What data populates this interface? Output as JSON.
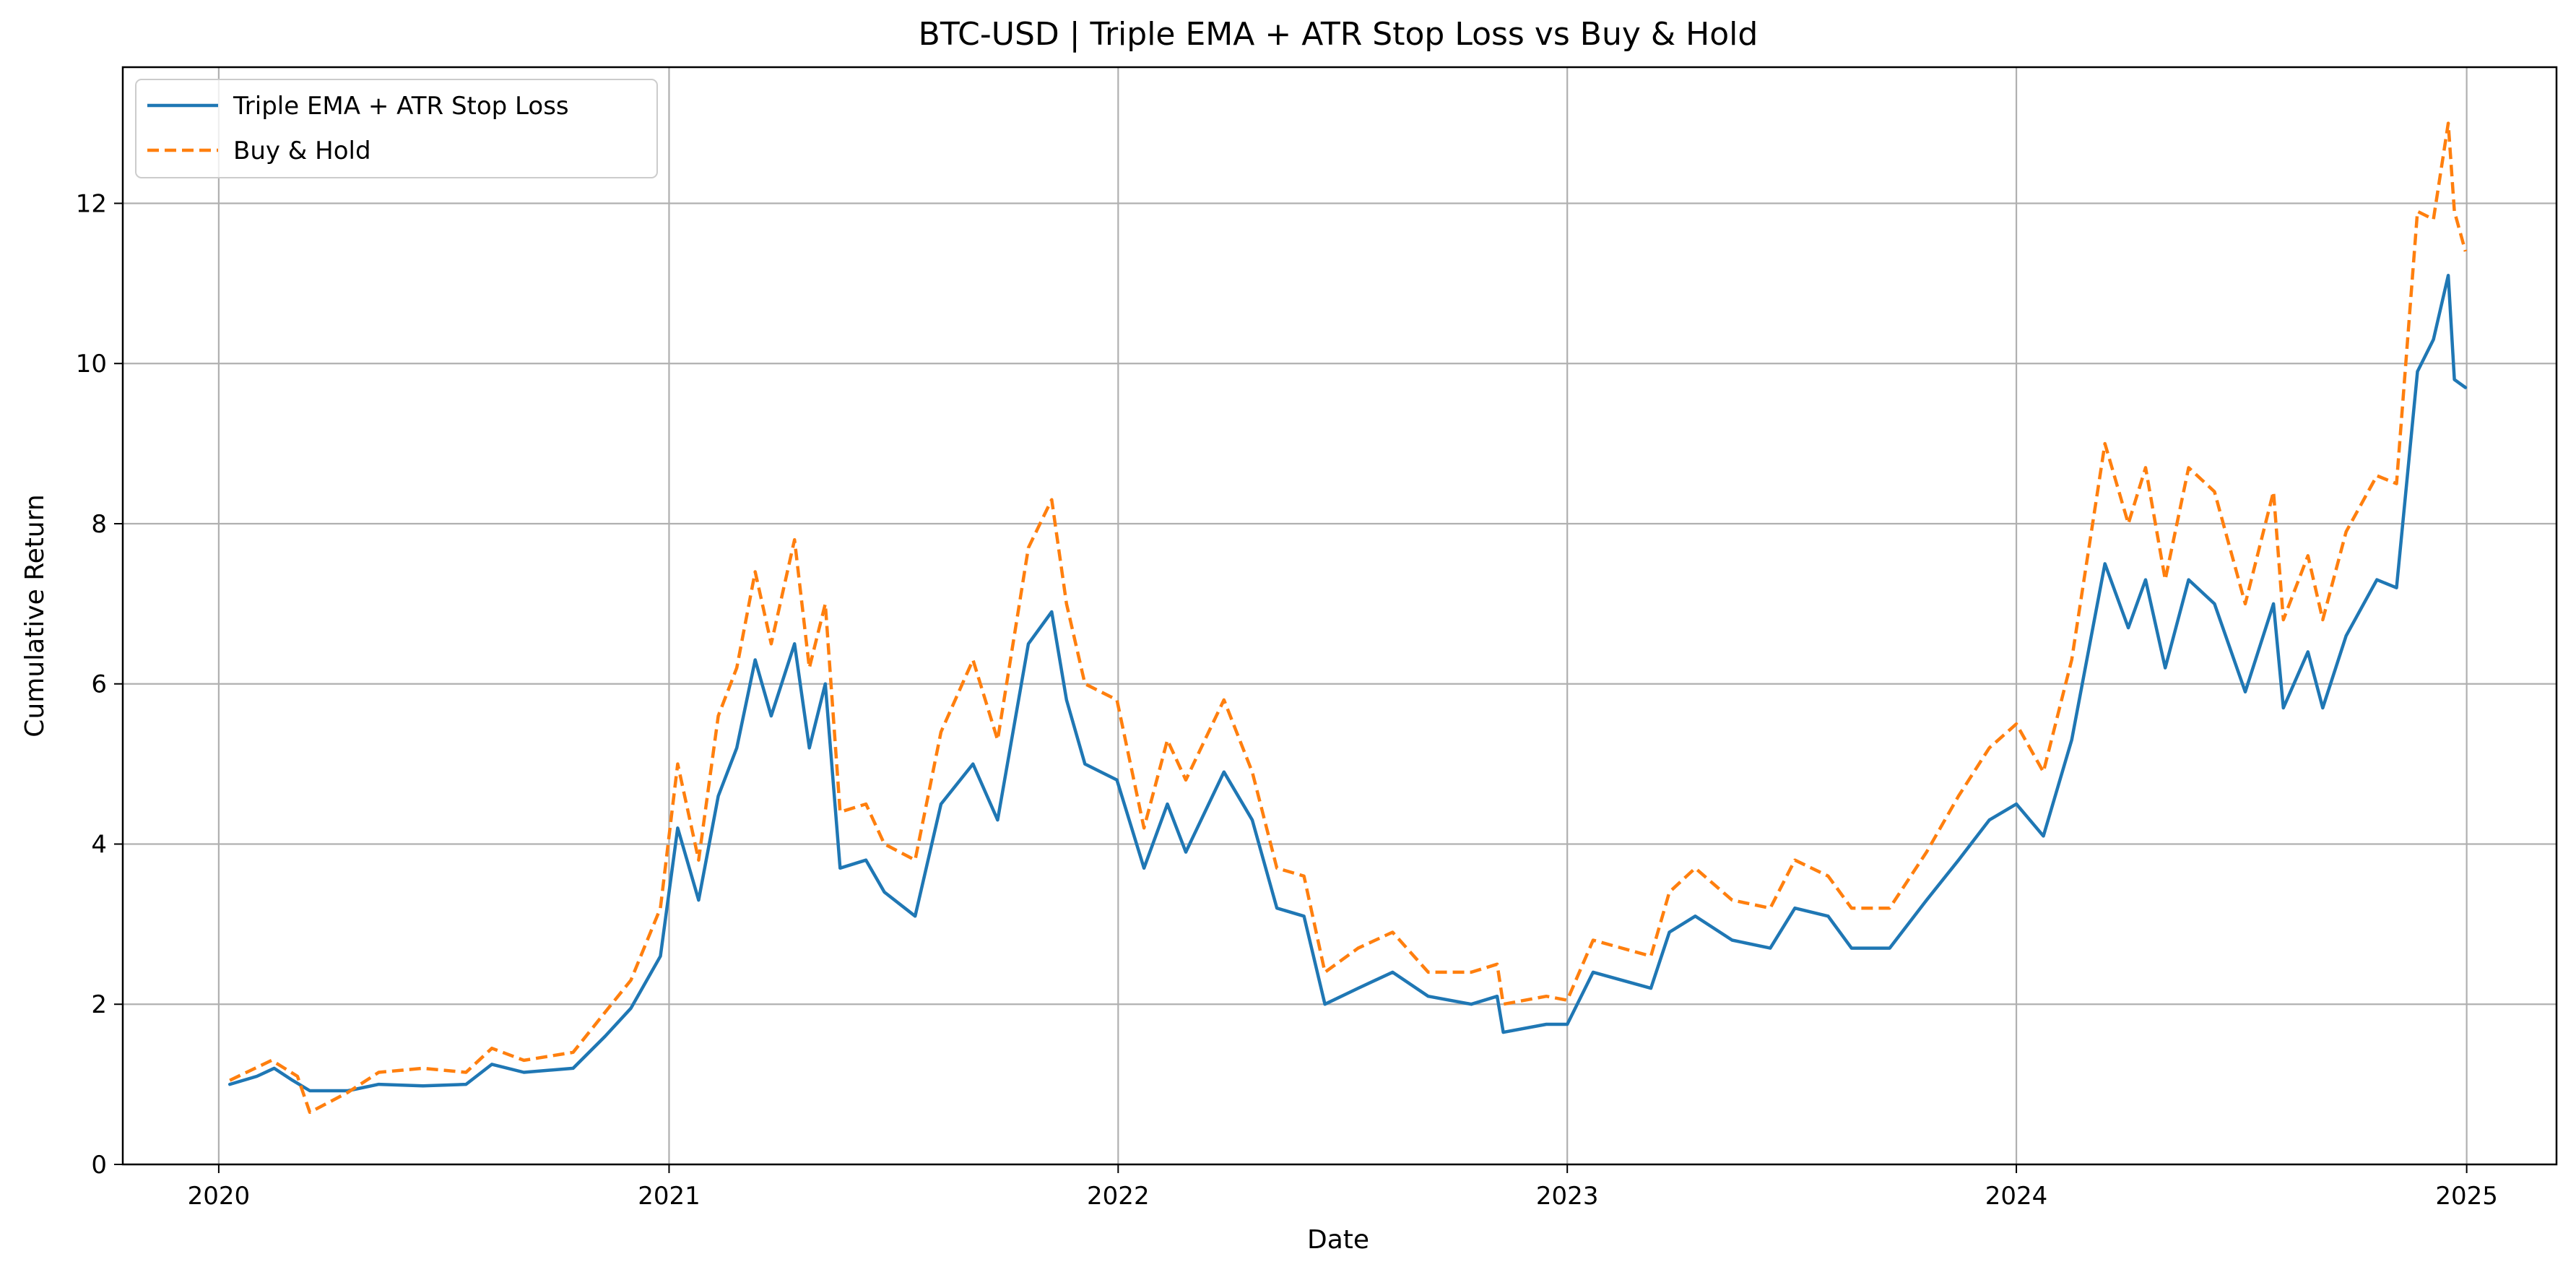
{
  "chart_data": {
    "type": "line",
    "title": "BTC-USD | Triple EMA + ATR Stop Loss vs Buy & Hold",
    "xlabel": "Date",
    "ylabel": "Cumulative Return",
    "xlim": [
      "2019-10-15",
      "2025-03-15"
    ],
    "ylim": [
      0,
      13.7
    ],
    "x_ticks": [
      "2020",
      "2021",
      "2022",
      "2023",
      "2024",
      "2025"
    ],
    "y_ticks": [
      "0",
      "2",
      "4",
      "6",
      "8",
      "10",
      "12"
    ],
    "grid": true,
    "legend_position": "upper-left",
    "series": [
      {
        "name": "Triple EMA + ATR Stop Loss",
        "color": "#1f77b4",
        "style": "solid",
        "points": [
          [
            "2020-01-10",
            1.0
          ],
          [
            "2020-02-01",
            1.1
          ],
          [
            "2020-02-15",
            1.2
          ],
          [
            "2020-03-01",
            1.05
          ],
          [
            "2020-03-15",
            0.92
          ],
          [
            "2020-04-15",
            0.92
          ],
          [
            "2020-05-10",
            1.0
          ],
          [
            "2020-06-15",
            0.98
          ],
          [
            "2020-07-20",
            1.0
          ],
          [
            "2020-08-10",
            1.25
          ],
          [
            "2020-09-05",
            1.15
          ],
          [
            "2020-10-15",
            1.2
          ],
          [
            "2020-11-10",
            1.6
          ],
          [
            "2020-12-01",
            1.95
          ],
          [
            "2020-12-25",
            2.6
          ],
          [
            "2021-01-08",
            4.2
          ],
          [
            "2021-01-25",
            3.3
          ],
          [
            "2021-02-10",
            4.6
          ],
          [
            "2021-02-25",
            5.2
          ],
          [
            "2021-03-12",
            6.3
          ],
          [
            "2021-03-25",
            5.6
          ],
          [
            "2021-04-13",
            6.5
          ],
          [
            "2021-04-25",
            5.2
          ],
          [
            "2021-05-08",
            6.0
          ],
          [
            "2021-05-20",
            3.7
          ],
          [
            "2021-06-10",
            3.8
          ],
          [
            "2021-06-25",
            3.4
          ],
          [
            "2021-07-20",
            3.1
          ],
          [
            "2021-08-10",
            4.5
          ],
          [
            "2021-09-05",
            5.0
          ],
          [
            "2021-09-25",
            4.3
          ],
          [
            "2021-10-20",
            6.5
          ],
          [
            "2021-11-08",
            6.9
          ],
          [
            "2021-11-20",
            5.8
          ],
          [
            "2021-12-05",
            5.0
          ],
          [
            "2021-12-31",
            4.8
          ],
          [
            "2022-01-22",
            3.7
          ],
          [
            "2022-02-10",
            4.5
          ],
          [
            "2022-02-25",
            3.9
          ],
          [
            "2022-03-28",
            4.9
          ],
          [
            "2022-04-20",
            4.3
          ],
          [
            "2022-05-10",
            3.2
          ],
          [
            "2022-06-01",
            3.1
          ],
          [
            "2022-06-18",
            2.0
          ],
          [
            "2022-07-15",
            2.2
          ],
          [
            "2022-08-12",
            2.4
          ],
          [
            "2022-09-10",
            2.1
          ],
          [
            "2022-10-15",
            2.0
          ],
          [
            "2022-11-05",
            2.1
          ],
          [
            "2022-11-10",
            1.65
          ],
          [
            "2022-12-15",
            1.75
          ],
          [
            "2023-01-01",
            1.75
          ],
          [
            "2023-01-22",
            2.4
          ],
          [
            "2023-03-10",
            2.2
          ],
          [
            "2023-03-25",
            2.9
          ],
          [
            "2023-04-15",
            3.1
          ],
          [
            "2023-05-15",
            2.8
          ],
          [
            "2023-06-15",
            2.7
          ],
          [
            "2023-07-05",
            3.2
          ],
          [
            "2023-08-01",
            3.1
          ],
          [
            "2023-08-20",
            2.7
          ],
          [
            "2023-09-20",
            2.7
          ],
          [
            "2023-10-20",
            3.3
          ],
          [
            "2023-11-15",
            3.8
          ],
          [
            "2023-12-10",
            4.3
          ],
          [
            "2024-01-01",
            4.5
          ],
          [
            "2024-01-23",
            4.1
          ],
          [
            "2024-02-15",
            5.3
          ],
          [
            "2024-03-13",
            7.5
          ],
          [
            "2024-04-01",
            6.7
          ],
          [
            "2024-04-15",
            7.3
          ],
          [
            "2024-05-01",
            6.2
          ],
          [
            "2024-05-20",
            7.3
          ],
          [
            "2024-06-10",
            7.0
          ],
          [
            "2024-07-05",
            5.9
          ],
          [
            "2024-07-28",
            7.0
          ],
          [
            "2024-08-05",
            5.7
          ],
          [
            "2024-08-25",
            6.4
          ],
          [
            "2024-09-06",
            5.7
          ],
          [
            "2024-09-25",
            6.6
          ],
          [
            "2024-10-20",
            7.3
          ],
          [
            "2024-11-05",
            7.2
          ],
          [
            "2024-11-22",
            9.9
          ],
          [
            "2024-12-05",
            10.3
          ],
          [
            "2024-12-17",
            11.1
          ],
          [
            "2024-12-22",
            9.8
          ],
          [
            "2024-12-31",
            9.7
          ]
        ]
      },
      {
        "name": "Buy & Hold",
        "color": "#ff7f0e",
        "style": "dashed",
        "points": [
          [
            "2020-01-10",
            1.05
          ],
          [
            "2020-02-13",
            1.3
          ],
          [
            "2020-03-05",
            1.1
          ],
          [
            "2020-03-15",
            0.65
          ],
          [
            "2020-04-15",
            0.9
          ],
          [
            "2020-05-10",
            1.15
          ],
          [
            "2020-06-15",
            1.2
          ],
          [
            "2020-07-20",
            1.15
          ],
          [
            "2020-08-10",
            1.45
          ],
          [
            "2020-09-05",
            1.3
          ],
          [
            "2020-10-15",
            1.4
          ],
          [
            "2020-11-10",
            1.9
          ],
          [
            "2020-12-01",
            2.3
          ],
          [
            "2020-12-25",
            3.2
          ],
          [
            "2021-01-08",
            5.0
          ],
          [
            "2021-01-25",
            3.8
          ],
          [
            "2021-02-10",
            5.6
          ],
          [
            "2021-02-25",
            6.2
          ],
          [
            "2021-03-12",
            7.4
          ],
          [
            "2021-03-25",
            6.5
          ],
          [
            "2021-04-13",
            7.8
          ],
          [
            "2021-04-25",
            6.2
          ],
          [
            "2021-05-08",
            7.0
          ],
          [
            "2021-05-20",
            4.4
          ],
          [
            "2021-06-10",
            4.5
          ],
          [
            "2021-06-25",
            4.0
          ],
          [
            "2021-07-20",
            3.8
          ],
          [
            "2021-08-10",
            5.4
          ],
          [
            "2021-09-05",
            6.3
          ],
          [
            "2021-09-25",
            5.3
          ],
          [
            "2021-10-20",
            7.7
          ],
          [
            "2021-11-08",
            8.3
          ],
          [
            "2021-11-20",
            7.0
          ],
          [
            "2021-12-05",
            6.0
          ],
          [
            "2021-12-31",
            5.8
          ],
          [
            "2022-01-22",
            4.2
          ],
          [
            "2022-02-10",
            5.3
          ],
          [
            "2022-02-25",
            4.8
          ],
          [
            "2022-03-28",
            5.8
          ],
          [
            "2022-04-20",
            4.9
          ],
          [
            "2022-05-10",
            3.7
          ],
          [
            "2022-06-01",
            3.6
          ],
          [
            "2022-06-18",
            2.4
          ],
          [
            "2022-07-15",
            2.7
          ],
          [
            "2022-08-12",
            2.9
          ],
          [
            "2022-09-10",
            2.4
          ],
          [
            "2022-10-15",
            2.4
          ],
          [
            "2022-11-05",
            2.5
          ],
          [
            "2022-11-10",
            2.0
          ],
          [
            "2022-12-15",
            2.1
          ],
          [
            "2023-01-01",
            2.05
          ],
          [
            "2023-01-22",
            2.8
          ],
          [
            "2023-03-10",
            2.6
          ],
          [
            "2023-03-25",
            3.4
          ],
          [
            "2023-04-15",
            3.7
          ],
          [
            "2023-05-15",
            3.3
          ],
          [
            "2023-06-15",
            3.2
          ],
          [
            "2023-07-05",
            3.8
          ],
          [
            "2023-08-01",
            3.6
          ],
          [
            "2023-08-20",
            3.2
          ],
          [
            "2023-09-20",
            3.2
          ],
          [
            "2023-10-20",
            3.9
          ],
          [
            "2023-11-15",
            4.6
          ],
          [
            "2023-12-10",
            5.2
          ],
          [
            "2024-01-01",
            5.5
          ],
          [
            "2024-01-23",
            4.9
          ],
          [
            "2024-02-15",
            6.3
          ],
          [
            "2024-03-13",
            9.0
          ],
          [
            "2024-04-01",
            8.0
          ],
          [
            "2024-04-15",
            8.7
          ],
          [
            "2024-05-01",
            7.3
          ],
          [
            "2024-05-20",
            8.7
          ],
          [
            "2024-06-10",
            8.4
          ],
          [
            "2024-07-05",
            7.0
          ],
          [
            "2024-07-28",
            8.4
          ],
          [
            "2024-08-05",
            6.8
          ],
          [
            "2024-08-25",
            7.6
          ],
          [
            "2024-09-06",
            6.8
          ],
          [
            "2024-09-25",
            7.9
          ],
          [
            "2024-10-20",
            8.6
          ],
          [
            "2024-11-05",
            8.5
          ],
          [
            "2024-11-22",
            11.9
          ],
          [
            "2024-12-05",
            11.8
          ],
          [
            "2024-12-17",
            13.0
          ],
          [
            "2024-12-22",
            11.9
          ],
          [
            "2024-12-31",
            11.4
          ]
        ]
      }
    ]
  }
}
